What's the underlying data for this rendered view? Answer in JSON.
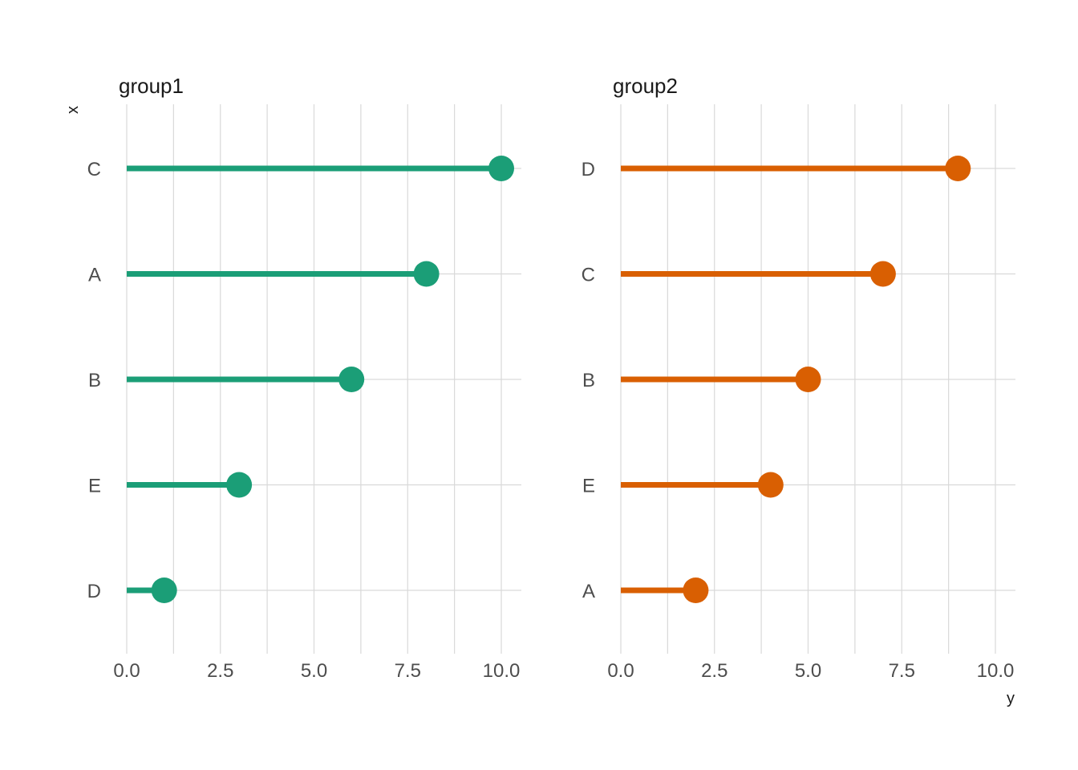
{
  "chart_data": [
    {
      "type": "lollipop",
      "title": "group1",
      "categories": [
        "C",
        "A",
        "B",
        "E",
        "D"
      ],
      "values": [
        10,
        8,
        6,
        3,
        1
      ],
      "color": "#1b9e77",
      "xlim": [
        0,
        10
      ],
      "x_ticks": [
        "0.0",
        "2.5",
        "5.0",
        "7.5",
        "10.0"
      ],
      "grid": true
    },
    {
      "type": "lollipop",
      "title": "group2",
      "categories": [
        "D",
        "C",
        "B",
        "E",
        "A"
      ],
      "values": [
        9,
        7,
        5,
        4,
        2
      ],
      "color": "#d95f02",
      "xlim": [
        0,
        10
      ],
      "x_ticks": [
        "0.0",
        "2.5",
        "5.0",
        "7.5",
        "10.0"
      ],
      "grid": true
    }
  ],
  "axes": {
    "xlabel": "y",
    "ylabel": "x"
  }
}
